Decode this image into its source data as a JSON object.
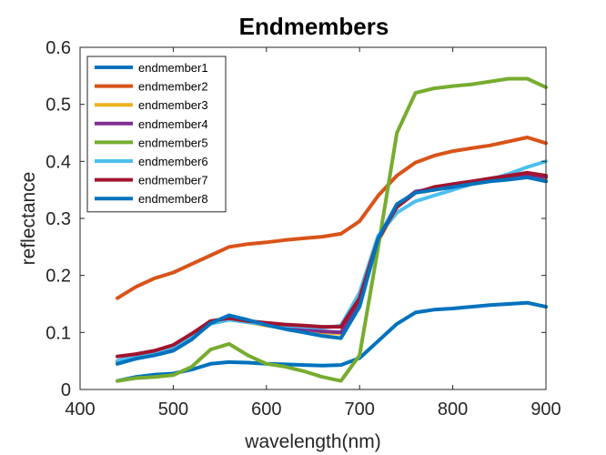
{
  "chart_data": {
    "type": "line",
    "title": "Endmembers",
    "xlabel": "wavelength(nm)",
    "ylabel": "reflectance",
    "xlim": [
      400,
      900
    ],
    "ylim": [
      0,
      0.6
    ],
    "xticks": [
      "400",
      "500",
      "600",
      "700",
      "800",
      "900"
    ],
    "yticks": [
      "0",
      "0.1",
      "0.2",
      "0.3",
      "0.4",
      "0.5",
      "0.6"
    ],
    "legend_position": "top-left",
    "grid": false,
    "series": [
      {
        "name": "endmember1",
        "color": "#0072BD",
        "x": [
          440,
          460,
          480,
          500,
          520,
          540,
          560,
          580,
          600,
          620,
          640,
          660,
          680,
          700,
          720,
          740,
          760,
          780,
          800,
          820,
          840,
          860,
          880,
          900
        ],
        "y": [
          0.015,
          0.022,
          0.026,
          0.028,
          0.035,
          0.045,
          0.048,
          0.047,
          0.045,
          0.044,
          0.043,
          0.042,
          0.043,
          0.055,
          0.085,
          0.115,
          0.135,
          0.14,
          0.142,
          0.145,
          0.148,
          0.15,
          0.152,
          0.145
        ]
      },
      {
        "name": "endmember2",
        "color": "#D95319",
        "x": [
          440,
          460,
          480,
          500,
          520,
          540,
          560,
          580,
          600,
          620,
          640,
          660,
          680,
          700,
          720,
          740,
          760,
          780,
          800,
          820,
          840,
          860,
          880,
          900
        ],
        "y": [
          0.16,
          0.18,
          0.195,
          0.205,
          0.22,
          0.235,
          0.25,
          0.255,
          0.258,
          0.262,
          0.265,
          0.268,
          0.273,
          0.295,
          0.34,
          0.375,
          0.398,
          0.41,
          0.418,
          0.423,
          0.428,
          0.435,
          0.442,
          0.432
        ]
      },
      {
        "name": "endmember3",
        "color": "#EDB120",
        "x": [
          440,
          460,
          480,
          500,
          520,
          540,
          560,
          580,
          600,
          620,
          640,
          660,
          680,
          700,
          720,
          740,
          760,
          780,
          800,
          820,
          840,
          860,
          880,
          900
        ],
        "y": [
          0.048,
          0.055,
          0.062,
          0.07,
          0.09,
          0.115,
          0.125,
          0.118,
          0.112,
          0.108,
          0.105,
          0.1,
          0.098,
          0.15,
          0.26,
          0.32,
          0.345,
          0.35,
          0.358,
          0.362,
          0.365,
          0.37,
          0.375,
          0.37
        ]
      },
      {
        "name": "endmember4",
        "color": "#7E2F8E",
        "x": [
          440,
          460,
          480,
          500,
          520,
          540,
          560,
          580,
          600,
          620,
          640,
          660,
          680,
          700,
          720,
          740,
          760,
          780,
          800,
          820,
          840,
          860,
          880,
          900
        ],
        "y": [
          0.05,
          0.057,
          0.064,
          0.072,
          0.092,
          0.117,
          0.127,
          0.12,
          0.114,
          0.11,
          0.106,
          0.102,
          0.1,
          0.152,
          0.262,
          0.322,
          0.347,
          0.352,
          0.36,
          0.364,
          0.367,
          0.372,
          0.377,
          0.372
        ]
      },
      {
        "name": "endmember5",
        "color": "#77AC30",
        "x": [
          440,
          460,
          480,
          500,
          520,
          540,
          560,
          580,
          600,
          620,
          640,
          660,
          680,
          700,
          720,
          740,
          760,
          780,
          800,
          820,
          840,
          860,
          880,
          900
        ],
        "y": [
          0.015,
          0.02,
          0.022,
          0.025,
          0.04,
          0.07,
          0.08,
          0.06,
          0.045,
          0.04,
          0.032,
          0.022,
          0.015,
          0.06,
          0.25,
          0.45,
          0.52,
          0.528,
          0.532,
          0.535,
          0.54,
          0.545,
          0.545,
          0.53
        ]
      },
      {
        "name": "endmember6",
        "color": "#4DBEEE",
        "x": [
          440,
          460,
          480,
          500,
          520,
          540,
          560,
          580,
          600,
          620,
          640,
          660,
          680,
          700,
          720,
          740,
          760,
          780,
          800,
          820,
          840,
          860,
          880,
          900
        ],
        "y": [
          0.05,
          0.06,
          0.066,
          0.075,
          0.095,
          0.115,
          0.122,
          0.118,
          0.114,
          0.112,
          0.11,
          0.108,
          0.112,
          0.17,
          0.27,
          0.31,
          0.33,
          0.34,
          0.35,
          0.36,
          0.368,
          0.378,
          0.39,
          0.4
        ]
      },
      {
        "name": "endmember7",
        "color": "#A2142F",
        "x": [
          440,
          460,
          480,
          500,
          520,
          540,
          560,
          580,
          600,
          620,
          640,
          660,
          680,
          700,
          720,
          740,
          760,
          780,
          800,
          820,
          840,
          860,
          880,
          900
        ],
        "y": [
          0.058,
          0.062,
          0.068,
          0.078,
          0.098,
          0.12,
          0.125,
          0.12,
          0.117,
          0.114,
          0.112,
          0.11,
          0.11,
          0.16,
          0.265,
          0.32,
          0.345,
          0.355,
          0.36,
          0.365,
          0.37,
          0.375,
          0.38,
          0.375
        ]
      },
      {
        "name": "endmember8",
        "color": "#0072BD",
        "x": [
          440,
          460,
          480,
          500,
          520,
          540,
          560,
          580,
          600,
          620,
          640,
          660,
          680,
          700,
          720,
          740,
          760,
          780,
          800,
          820,
          840,
          860,
          880,
          900
        ],
        "y": [
          0.045,
          0.054,
          0.06,
          0.068,
          0.088,
          0.116,
          0.13,
          0.122,
          0.113,
          0.106,
          0.1,
          0.094,
          0.09,
          0.145,
          0.265,
          0.325,
          0.345,
          0.35,
          0.355,
          0.36,
          0.365,
          0.368,
          0.372,
          0.365
        ]
      }
    ]
  }
}
